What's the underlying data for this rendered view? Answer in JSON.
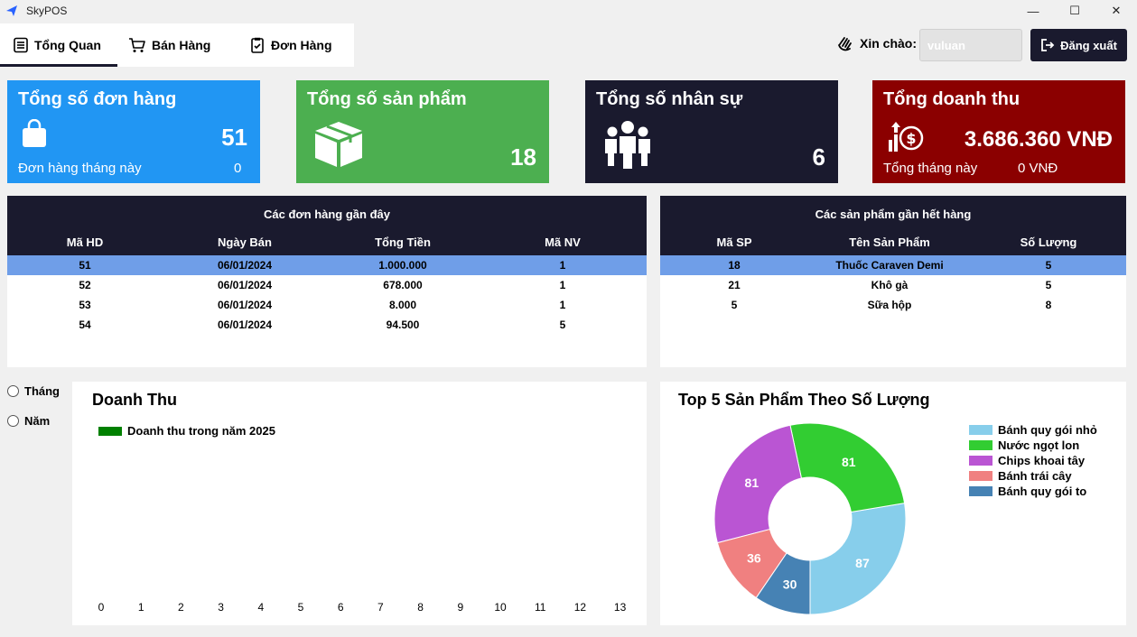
{
  "window": {
    "title": "SkyPOS"
  },
  "tabs": [
    {
      "label": "Tổng Quan",
      "icon": "list-icon"
    },
    {
      "label": "Bán Hàng",
      "icon": "cart-icon"
    },
    {
      "label": "Đơn Hàng",
      "icon": "order-icon"
    }
  ],
  "header": {
    "greeting": "Xin chào:",
    "username": "vuluan",
    "logout_label": "Đăng xuất"
  },
  "cards": {
    "orders": {
      "title": "Tổng số đơn hàng",
      "value": "51",
      "sub_label": "Đơn hàng tháng này",
      "sub_value": "0",
      "color": "#2196f3"
    },
    "products": {
      "title": "Tổng số sản phẩm",
      "value": "18",
      "color": "#4caf50"
    },
    "staff": {
      "title": "Tổng số nhân sự",
      "value": "6",
      "color": "#1a1a2e"
    },
    "revenue": {
      "title": "Tổng doanh thu",
      "value": "3.686.360 VNĐ",
      "sub_label": "Tổng tháng này",
      "sub_value": "0 VNĐ",
      "color": "#8b0000"
    }
  },
  "recent_orders": {
    "title": "Các đơn hàng gần đây",
    "columns": [
      "Mã HD",
      "Ngày Bán",
      "Tổng Tiền",
      "Mã NV"
    ],
    "rows": [
      [
        "51",
        "06/01/2024",
        "1.000.000",
        "1"
      ],
      [
        "52",
        "06/01/2024",
        "678.000",
        "1"
      ],
      [
        "53",
        "06/01/2024",
        "8.000",
        "1"
      ],
      [
        "54",
        "06/01/2024",
        "94.500",
        "5"
      ]
    ]
  },
  "low_stock": {
    "title": "Các sản phẩm gần hết hàng",
    "columns": [
      "Mã SP",
      "Tên Sản Phẩm",
      "Số Lượng"
    ],
    "rows": [
      [
        "18",
        "Thuốc Caraven Demi",
        "5"
      ],
      [
        "21",
        "Khô gà",
        "5"
      ],
      [
        "5",
        "Sữa hộp",
        "8"
      ]
    ]
  },
  "filters": {
    "month": "Tháng",
    "year": "Năm"
  },
  "chart_data": [
    {
      "type": "bar",
      "title": "Doanh Thu",
      "legend": "top-left",
      "series": [
        {
          "name": "Doanh thu trong năm 2025",
          "color": "#008000",
          "values": []
        }
      ],
      "x_ticks": [
        "0",
        "1",
        "2",
        "3",
        "4",
        "5",
        "6",
        "7",
        "8",
        "9",
        "10",
        "11",
        "12",
        "13"
      ]
    },
    {
      "type": "pie",
      "title": "Top 5 Sản Phẩm Theo Số Lượng",
      "legend": "right",
      "slices": [
        {
          "label": "Bánh quy gói nhỏ",
          "value": 87,
          "color": "#87ceeb"
        },
        {
          "label": "Nước ngọt lon",
          "value": 81,
          "color": "#32cd32"
        },
        {
          "label": "Chips khoai tây",
          "value": 81,
          "color": "#ba55d3"
        },
        {
          "label": "Bánh trái cây",
          "value": 36,
          "color": "#f08080"
        },
        {
          "label": "Bánh quy gói to",
          "value": 30,
          "color": "#4682b4"
        }
      ]
    }
  ]
}
